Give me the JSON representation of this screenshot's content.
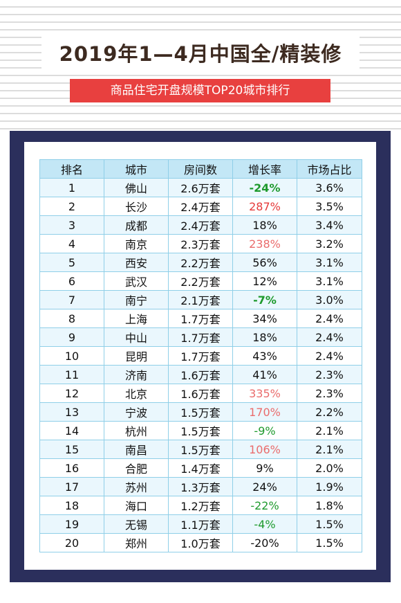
{
  "title": "2019年1—4月中国全/精装修",
  "subtitle": "商品住宅开盘规模TOP20城市排行",
  "colors": {
    "accent_red": "#e8403f",
    "frame_navy": "#2b2f5c",
    "header_blue": "#c3e7f6",
    "negative_green": "#1e9a2d",
    "growth_red": "#e53a3a"
  },
  "table": {
    "headers": [
      "排名",
      "城市",
      "房间数",
      "增长率",
      "市场占比"
    ],
    "rows": [
      {
        "rank": "1",
        "city": "佛山",
        "rooms": "2.6万套",
        "growth": "-24%",
        "share": "3.6%"
      },
      {
        "rank": "2",
        "city": "长沙",
        "rooms": "2.4万套",
        "growth": "287%",
        "share": "3.5%"
      },
      {
        "rank": "3",
        "city": "成都",
        "rooms": "2.4万套",
        "growth": "18%",
        "share": "3.4%"
      },
      {
        "rank": "4",
        "city": "南京",
        "rooms": "2.3万套",
        "growth": "238%",
        "share": "3.2%"
      },
      {
        "rank": "5",
        "city": "西安",
        "rooms": "2.2万套",
        "growth": "56%",
        "share": "3.1%"
      },
      {
        "rank": "6",
        "city": "武汉",
        "rooms": "2.2万套",
        "growth": "12%",
        "share": "3.1%"
      },
      {
        "rank": "7",
        "city": "南宁",
        "rooms": "2.1万套",
        "growth": "-7%",
        "share": "3.0%"
      },
      {
        "rank": "8",
        "city": "上海",
        "rooms": "1.7万套",
        "growth": "34%",
        "share": "2.4%"
      },
      {
        "rank": "9",
        "city": "中山",
        "rooms": "1.7万套",
        "growth": "18%",
        "share": "2.4%"
      },
      {
        "rank": "10",
        "city": "昆明",
        "rooms": "1.7万套",
        "growth": "43%",
        "share": "2.4%"
      },
      {
        "rank": "11",
        "city": "济南",
        "rooms": "1.6万套",
        "growth": "41%",
        "share": "2.3%"
      },
      {
        "rank": "12",
        "city": "北京",
        "rooms": "1.6万套",
        "growth": "335%",
        "share": "2.3%"
      },
      {
        "rank": "13",
        "city": "宁波",
        "rooms": "1.5万套",
        "growth": "170%",
        "share": "2.2%"
      },
      {
        "rank": "14",
        "city": "杭州",
        "rooms": "1.5万套",
        "growth": "-9%",
        "share": "2.1%"
      },
      {
        "rank": "15",
        "city": "南昌",
        "rooms": "1.5万套",
        "growth": "106%",
        "share": "2.1%"
      },
      {
        "rank": "16",
        "city": "合肥",
        "rooms": "1.4万套",
        "growth": "9%",
        "share": "2.0%"
      },
      {
        "rank": "17",
        "city": "苏州",
        "rooms": "1.3万套",
        "growth": "24%",
        "share": "1.9%"
      },
      {
        "rank": "18",
        "city": "海口",
        "rooms": "1.2万套",
        "growth": "-22%",
        "share": "1.8%"
      },
      {
        "rank": "19",
        "city": "无锡",
        "rooms": "1.1万套",
        "growth": "-4%",
        "share": "1.5%"
      },
      {
        "rank": "20",
        "city": "郑州",
        "rooms": "1.0万套",
        "growth": "-20%",
        "share": "1.5%"
      }
    ]
  }
}
